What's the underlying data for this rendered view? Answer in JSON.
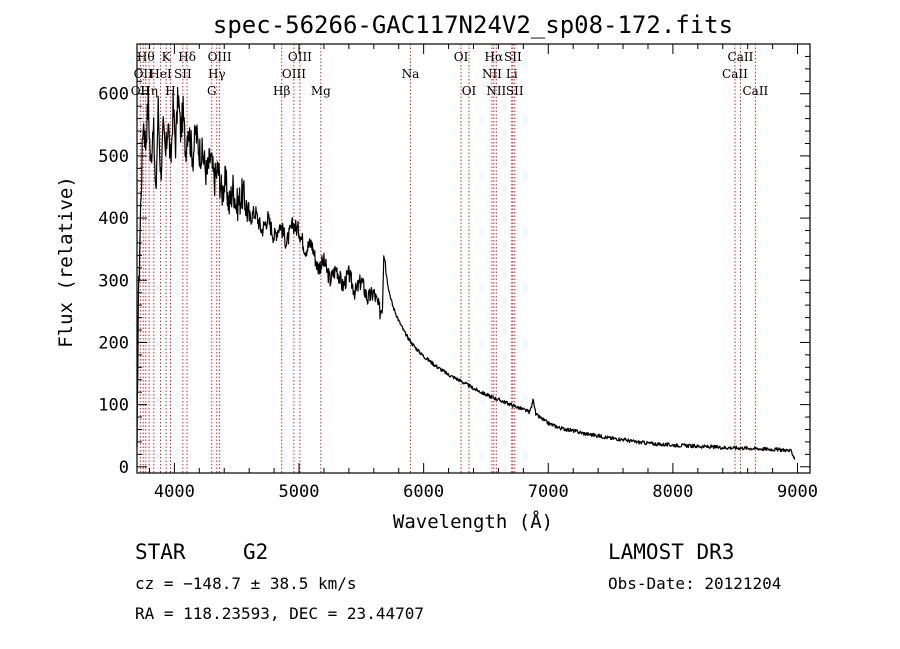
{
  "chart_data": {
    "type": "line",
    "title": "spec-56266-GAC117N24V2_sp08-172.fits",
    "xlabel": "Wavelength (Å)",
    "ylabel": "Flux (relative)",
    "xlim": [
      3700,
      9100
    ],
    "ylim": [
      -10,
      680
    ],
    "xticks": [
      4000,
      5000,
      6000,
      7000,
      8000,
      9000
    ],
    "xtick_labels": [
      "4000",
      "5000",
      "6000",
      "7000",
      "8000",
      "9000"
    ],
    "yticks": [
      0,
      100,
      200,
      300,
      400,
      500,
      600
    ],
    "ytick_labels": [
      "0",
      "100",
      "200",
      "300",
      "400",
      "500",
      "600"
    ],
    "series": [
      {
        "name": "flux",
        "x": [
          3700,
          3710,
          3730,
          3750,
          3770,
          3790,
          3810,
          3830,
          3850,
          3870,
          3890,
          3910,
          3930,
          3950,
          3970,
          3990,
          4010,
          4030,
          4050,
          4070,
          4090,
          4110,
          4130,
          4150,
          4170,
          4200,
          4230,
          4260,
          4290,
          4320,
          4350,
          4380,
          4410,
          4440,
          4470,
          4500,
          4550,
          4600,
          4650,
          4700,
          4750,
          4800,
          4850,
          4900,
          4950,
          5000,
          5050,
          5100,
          5150,
          5200,
          5250,
          5300,
          5350,
          5400,
          5450,
          5500,
          5550,
          5600,
          5650,
          5670,
          5680,
          5690,
          5700,
          5720,
          5750,
          5800,
          5850,
          5900,
          5950,
          6000,
          6100,
          6200,
          6300,
          6400,
          6500,
          6600,
          6700,
          6800,
          6850,
          6870,
          6880,
          6900,
          7000,
          7100,
          7200,
          7300,
          7400,
          7500,
          7600,
          7700,
          7800,
          7900,
          8000,
          8200,
          8400,
          8600,
          8700,
          8800,
          8900,
          8950,
          8980
        ],
        "y": [
          10,
          250,
          420,
          560,
          520,
          590,
          480,
          560,
          430,
          580,
          470,
          540,
          500,
          560,
          480,
          580,
          520,
          600,
          540,
          570,
          510,
          550,
          520,
          500,
          540,
          510,
          500,
          470,
          500,
          460,
          480,
          440,
          460,
          420,
          450,
          420,
          440,
          400,
          410,
          380,
          400,
          370,
          390,
          360,
          390,
          380,
          350,
          360,
          320,
          330,
          300,
          320,
          290,
          310,
          280,
          300,
          270,
          280,
          250,
          260,
          350,
          340,
          310,
          285,
          260,
          235,
          215,
          200,
          188,
          178,
          162,
          148,
          138,
          126,
          116,
          108,
          100,
          92,
          88,
          100,
          110,
          84,
          70,
          62,
          58,
          53,
          50,
          46,
          44,
          40,
          38,
          36,
          35,
          33,
          31,
          30,
          29,
          28,
          27,
          25,
          12
        ]
      }
    ],
    "lines": [
      {
        "wl": 3727,
        "label": "OII",
        "row": 2
      },
      {
        "wl": 3750,
        "label": "OII",
        "row": 1
      },
      {
        "wl": 3770,
        "label": "Hθ",
        "row": 0
      },
      {
        "wl": 3797,
        "label": "Hη",
        "row": 2
      },
      {
        "wl": 3835,
        "label": "",
        "row": -1
      },
      {
        "wl": 3889,
        "label": "HeI",
        "row": 1
      },
      {
        "wl": 3934,
        "label": "K",
        "row": 0
      },
      {
        "wl": 3969,
        "label": "H",
        "row": 2
      },
      {
        "wl": 4068,
        "label": "SII",
        "row": 1
      },
      {
        "wl": 4102,
        "label": "Hδ",
        "row": 0
      },
      {
        "wl": 4300,
        "label": "G",
        "row": 2
      },
      {
        "wl": 4340,
        "label": "Hγ",
        "row": 1
      },
      {
        "wl": 4363,
        "label": "OIII",
        "row": 0
      },
      {
        "wl": 4861,
        "label": "Hβ",
        "row": 2
      },
      {
        "wl": 4959,
        "label": "OIII",
        "row": 1
      },
      {
        "wl": 5007,
        "label": "OIII",
        "row": 0
      },
      {
        "wl": 5175,
        "label": "Mg",
        "row": 2
      },
      {
        "wl": 5894,
        "label": "Na",
        "row": 1
      },
      {
        "wl": 6300,
        "label": "OI",
        "row": 0
      },
      {
        "wl": 6364,
        "label": "OI",
        "row": 2
      },
      {
        "wl": 6548,
        "label": "NII",
        "row": 1
      },
      {
        "wl": 6563,
        "label": "Hα",
        "row": 0
      },
      {
        "wl": 6583,
        "label": "NII",
        "row": 2
      },
      {
        "wl": 6707,
        "label": "Li",
        "row": 1
      },
      {
        "wl": 6716,
        "label": "SII",
        "row": 0
      },
      {
        "wl": 6731,
        "label": "SII",
        "row": 2
      },
      {
        "wl": 8498,
        "label": "CaII",
        "row": 1
      },
      {
        "wl": 8542,
        "label": "CaII",
        "row": 0
      },
      {
        "wl": 8662,
        "label": "CaII",
        "row": 2
      }
    ],
    "line_color": "#cc2a2a"
  },
  "info": {
    "class": "STAR",
    "subclass": "G2",
    "survey": "LAMOST DR3",
    "cz": "cz = −148.7 ± 38.5 km/s",
    "obsdate": "Obs-Date: 20121204",
    "radec": "RA = 118.23593, DEC =  23.44707"
  }
}
